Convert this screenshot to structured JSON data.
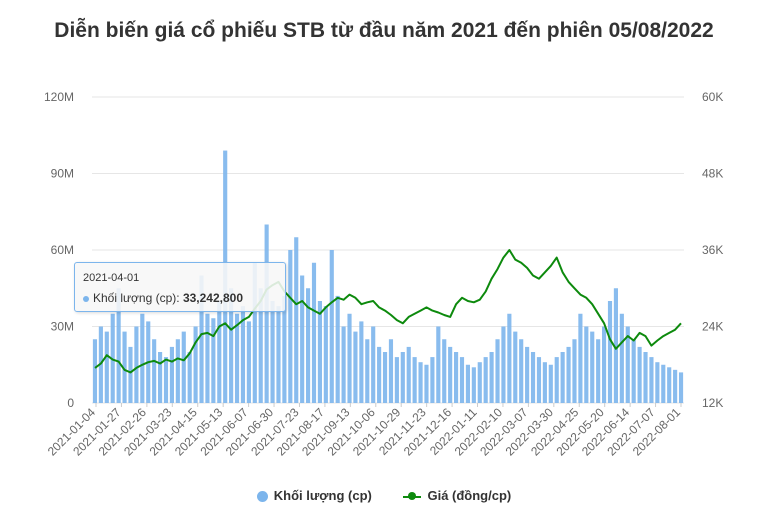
{
  "title": "Diễn biến giá cổ phiếu STB từ đầu năm 2021 đến phiên 05/08/2022",
  "chart_data": {
    "type": "bar+line",
    "title": "Diễn biến giá cổ phiếu STB từ đầu năm 2021 đến phiên 05/08/2022",
    "left_axis": {
      "ticks": [
        "0",
        "30M",
        "60M",
        "90M",
        "120M"
      ],
      "range": [
        0,
        120000000
      ]
    },
    "right_axis": {
      "ticks": [
        "12K",
        "24K",
        "36K",
        "48K",
        "60K"
      ],
      "range": [
        12000,
        60000
      ]
    },
    "x_tick_labels": [
      "2021-01-04",
      "2021-01-27",
      "2021-02-26",
      "2021-03-23",
      "2021-04-15",
      "2021-05-13",
      "2021-06-07",
      "2021-06-30",
      "2021-07-23",
      "2021-08-17",
      "2021-09-13",
      "2021-10-06",
      "2021-10-29",
      "2021-11-23",
      "2021-12-16",
      "2022-01-11",
      "2022-02-10",
      "2022-03-07",
      "2022-03-30",
      "2022-04-25",
      "2022-05-20",
      "2022-06-14",
      "2022-07-07",
      "2022-08-01"
    ],
    "series": [
      {
        "name": "Khối lượng (cp)",
        "type": "bar",
        "color": "#7cb5ec",
        "unit": "cp",
        "values": [
          25000000,
          30000000,
          28000000,
          35000000,
          45000000,
          28000000,
          22000000,
          30000000,
          35000000,
          32000000,
          25000000,
          20000000,
          18000000,
          22000000,
          25000000,
          28000000,
          20000000,
          30000000,
          50000000,
          35000000,
          33242800,
          40000000,
          99000000,
          45000000,
          35000000,
          38000000,
          32000000,
          55000000,
          45000000,
          70000000,
          40000000,
          38000000,
          42000000,
          60000000,
          65000000,
          50000000,
          45000000,
          55000000,
          40000000,
          38000000,
          60000000,
          42000000,
          30000000,
          35000000,
          28000000,
          32000000,
          25000000,
          30000000,
          22000000,
          20000000,
          25000000,
          18000000,
          20000000,
          22000000,
          18000000,
          16000000,
          15000000,
          18000000,
          30000000,
          25000000,
          22000000,
          20000000,
          18000000,
          15000000,
          14000000,
          16000000,
          18000000,
          20000000,
          25000000,
          30000000,
          35000000,
          28000000,
          25000000,
          22000000,
          20000000,
          18000000,
          16000000,
          15000000,
          18000000,
          20000000,
          22000000,
          25000000,
          35000000,
          30000000,
          28000000,
          25000000,
          30000000,
          40000000,
          45000000,
          35000000,
          30000000,
          25000000,
          22000000,
          20000000,
          18000000,
          16000000,
          15000000,
          14000000,
          13000000,
          12000000
        ]
      },
      {
        "name": "Giá (đồng/cp)",
        "type": "line",
        "color": "#0d8a0d",
        "unit": "đồng/cp",
        "values": [
          17500,
          18200,
          19500,
          18800,
          18500,
          17200,
          16800,
          17500,
          18000,
          18400,
          18600,
          18200,
          18800,
          18500,
          19000,
          18700,
          19800,
          21500,
          22800,
          23000,
          22500,
          24000,
          24500,
          23500,
          24200,
          25000,
          25500,
          26800,
          28000,
          29800,
          30500,
          31000,
          29500,
          28500,
          27500,
          28000,
          27000,
          26500,
          26000,
          27000,
          27800,
          28500,
          28200,
          29000,
          28500,
          27500,
          27800,
          28000,
          27000,
          26500,
          25800,
          25000,
          24500,
          25500,
          26000,
          26500,
          27000,
          26500,
          26200,
          25800,
          25500,
          27500,
          28500,
          28000,
          27800,
          28200,
          29500,
          31500,
          33000,
          34800,
          36000,
          34500,
          34000,
          33200,
          32000,
          31500,
          32500,
          33500,
          34800,
          32500,
          31000,
          30000,
          29000,
          28500,
          27500,
          26000,
          24500,
          22000,
          20500,
          21500,
          22500,
          21800,
          23000,
          22500,
          21000,
          21800,
          22500,
          23000,
          23500,
          24500
        ]
      }
    ],
    "tooltip": {
      "date": "2021-04-01",
      "series": "Khối lượng (cp)",
      "value": "33,242,800"
    },
    "legend_position": "bottom",
    "grid": "horizontal"
  },
  "legend": {
    "volume_label": "Khối lượng (cp)",
    "price_label": "Giá (đồng/cp)"
  },
  "tooltip_text": {
    "date": "2021-04-01",
    "label": "Khối lượng (cp): ",
    "value": "33,242,800"
  }
}
